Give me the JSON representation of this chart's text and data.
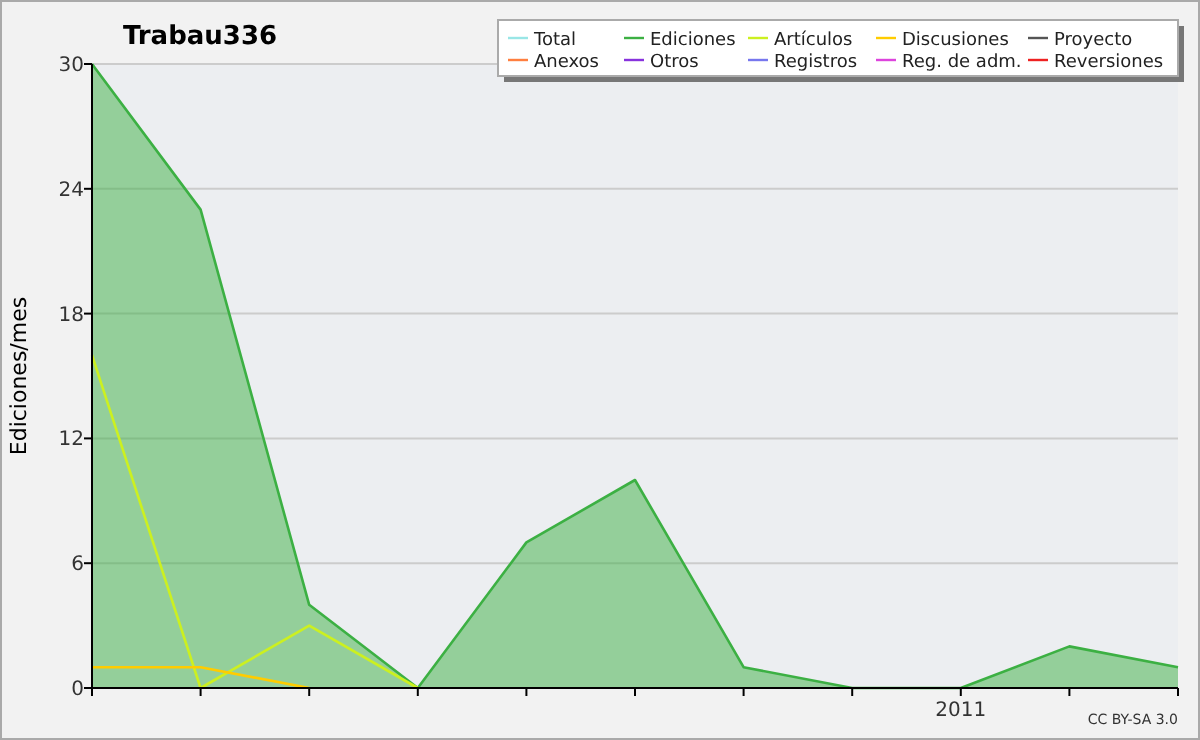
{
  "chart_data": {
    "type": "line",
    "title": "Trabau336",
    "ylabel": "Ediciones/mes",
    "categories": [
      null,
      null,
      null,
      null,
      null,
      null,
      null,
      null,
      "2011",
      null,
      null
    ],
    "ylim": [
      0,
      30
    ],
    "yticks": [
      0,
      6,
      12,
      18,
      24,
      30
    ],
    "grid": "y",
    "legend": "top right",
    "series": [
      {
        "name": "Total",
        "color": "#99e6e6",
        "values": [
          null,
          null,
          null,
          null,
          null,
          null,
          null,
          null,
          null,
          null,
          null
        ]
      },
      {
        "name": "Ediciones",
        "type": "area",
        "color": "#3cb043",
        "values": [
          30,
          23,
          4,
          0,
          7,
          10,
          1,
          0,
          0,
          2,
          1
        ]
      },
      {
        "name": "Artículos",
        "color": "#ccf020",
        "values": [
          16,
          0,
          3,
          0,
          null,
          null,
          null,
          null,
          null,
          null,
          null
        ]
      },
      {
        "name": "Discusiones",
        "color": "#ffcc00",
        "values": [
          1,
          1,
          0,
          null,
          null,
          null,
          null,
          null,
          null,
          null,
          null
        ]
      },
      {
        "name": "Proyecto",
        "color": "#555555",
        "values": [
          null,
          null,
          null,
          null,
          null,
          null,
          null,
          null,
          null,
          null,
          null
        ]
      },
      {
        "name": "Anexos",
        "color": "#ff7f3f",
        "values": [
          null,
          null,
          null,
          null,
          null,
          null,
          null,
          null,
          null,
          null,
          null
        ]
      },
      {
        "name": "Otros",
        "color": "#8833dd",
        "values": [
          null,
          null,
          null,
          null,
          null,
          null,
          null,
          null,
          null,
          null,
          null
        ]
      },
      {
        "name": "Registros",
        "color": "#7777ee",
        "values": [
          null,
          null,
          null,
          null,
          null,
          null,
          null,
          null,
          null,
          null,
          null
        ]
      },
      {
        "name": "Reg. de adm.",
        "color": "#dd44dd",
        "values": [
          null,
          null,
          null,
          null,
          null,
          null,
          null,
          null,
          null,
          null,
          null
        ]
      },
      {
        "name": "Reversiones",
        "color": "#ee2222",
        "values": [
          null,
          null,
          null,
          null,
          null,
          null,
          null,
          null,
          null,
          null,
          null
        ]
      }
    ],
    "annotations": [
      "CC BY-SA 3.0"
    ]
  }
}
